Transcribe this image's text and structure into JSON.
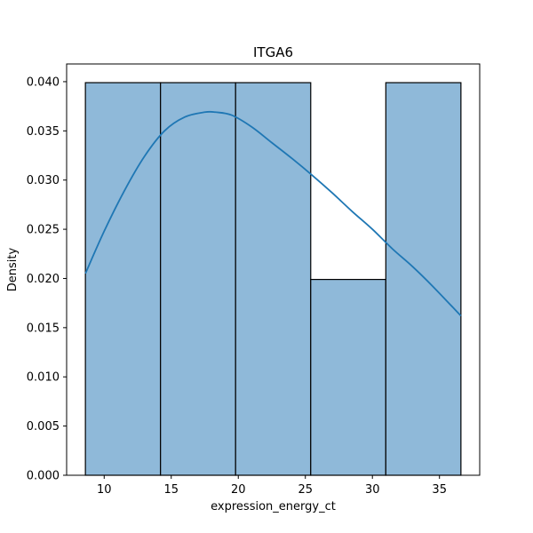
{
  "chart_data": {
    "type": "histogram",
    "title": "ITGA6",
    "xlabel": "expression_energy_ct",
    "ylabel": "Density",
    "xlim": [
      7.2,
      38.0
    ],
    "ylim": [
      0,
      0.0418
    ],
    "xticks": [
      10,
      15,
      20,
      25,
      30,
      35
    ],
    "yticks": [
      0.0,
      0.005,
      0.01,
      0.015,
      0.02,
      0.025,
      0.03,
      0.035,
      0.04
    ],
    "ytick_labels": [
      "0.000",
      "0.005",
      "0.010",
      "0.015",
      "0.020",
      "0.025",
      "0.030",
      "0.035",
      "0.040"
    ],
    "bins": [
      {
        "x0": 8.6,
        "x1": 14.2,
        "density": 0.0399
      },
      {
        "x0": 14.2,
        "x1": 19.8,
        "density": 0.0399
      },
      {
        "x0": 19.8,
        "x1": 25.4,
        "density": 0.0399
      },
      {
        "x0": 25.4,
        "x1": 31.0,
        "density": 0.0199
      },
      {
        "x0": 31.0,
        "x1": 36.6,
        "density": 0.0399
      }
    ],
    "kde": {
      "x": [
        8.6,
        10,
        11.5,
        13,
        14.5,
        16,
        17.5,
        18.3,
        19.5,
        21,
        22.5,
        24,
        25.5,
        27,
        28.5,
        30,
        31.5,
        33,
        34.5,
        36.6
      ],
      "y": [
        0.0205,
        0.0248,
        0.0289,
        0.0324,
        0.035,
        0.0364,
        0.0369,
        0.0369,
        0.0366,
        0.0354,
        0.0338,
        0.0322,
        0.0305,
        0.0287,
        0.0268,
        0.025,
        0.023,
        0.0212,
        0.0192,
        0.0162
      ]
    },
    "colors": {
      "bar_fill": "#8fb9d9",
      "bar_edge": "#000000",
      "kde_line": "#1f77b4"
    },
    "grid": false,
    "legend": "none"
  }
}
